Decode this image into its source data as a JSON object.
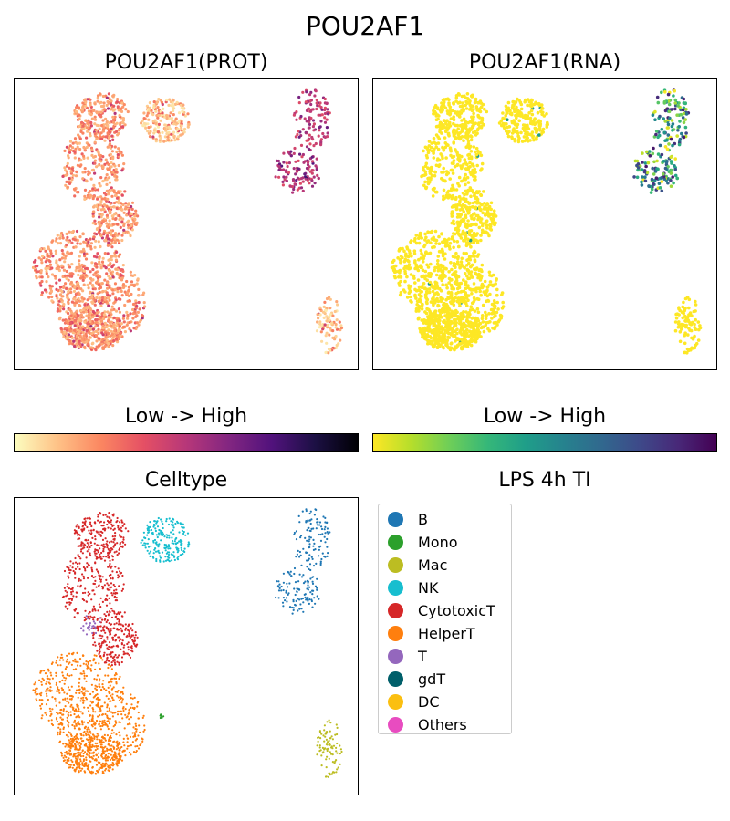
{
  "figure": {
    "title": "POU2AF1"
  },
  "panels": {
    "prot": {
      "title": "POU2AF1(PROT)"
    },
    "rna": {
      "title": "POU2AF1(RNA)"
    },
    "celltype": {
      "title": "Celltype"
    },
    "legend_title": "LPS 4h TI"
  },
  "colorbars": {
    "prot": {
      "label": "Low  ->  High",
      "colormap": "magma_r",
      "stops": [
        "#fcfdbf",
        "#fec287",
        "#fb8761",
        "#e55064",
        "#b73779",
        "#822681",
        "#51127c",
        "#1c1044",
        "#000004"
      ]
    },
    "rna": {
      "label": "Low  ->  High",
      "colormap": "viridis_r",
      "stops": [
        "#fde725",
        "#b5de2b",
        "#6ece58",
        "#35b779",
        "#1f9e89",
        "#26828e",
        "#31688e",
        "#3e4989",
        "#482878",
        "#440154"
      ]
    }
  },
  "chart_data": [
    {
      "type": "scatter",
      "title": "POU2AF1(PROT)",
      "color_encoding": "expression",
      "colormap": "magma_r",
      "clusters": [
        {
          "name": "CytotoxicT",
          "expression": "low-moderate"
        },
        {
          "name": "HelperT",
          "expression": "low-moderate"
        },
        {
          "name": "NK",
          "expression": "low"
        },
        {
          "name": "B",
          "expression": "high"
        },
        {
          "name": "Mac",
          "expression": "low"
        }
      ]
    },
    {
      "type": "scatter",
      "title": "POU2AF1(RNA)",
      "color_encoding": "expression",
      "colormap": "viridis_r",
      "clusters": [
        {
          "name": "CytotoxicT",
          "expression": "low"
        },
        {
          "name": "HelperT",
          "expression": "low"
        },
        {
          "name": "NK",
          "expression": "low"
        },
        {
          "name": "B",
          "expression": "high"
        },
        {
          "name": "Mac",
          "expression": "low"
        }
      ]
    },
    {
      "type": "scatter",
      "title": "Celltype",
      "legend_title": "LPS 4h TI",
      "legend": [
        {
          "name": "B",
          "color": "#1f77b4"
        },
        {
          "name": "Mono",
          "color": "#2ca02c"
        },
        {
          "name": "Mac",
          "color": "#bcbd22"
        },
        {
          "name": "NK",
          "color": "#17becf"
        },
        {
          "name": "CytotoxicT",
          "color": "#d62728"
        },
        {
          "name": "HelperT",
          "color": "#ff7f0e"
        },
        {
          "name": "T",
          "color": "#9467bd"
        },
        {
          "name": "gdT",
          "color": "#005f6a"
        },
        {
          "name": "DC",
          "color": "#fbbf10"
        },
        {
          "name": "Others",
          "color": "#e84cc0"
        }
      ]
    }
  ]
}
